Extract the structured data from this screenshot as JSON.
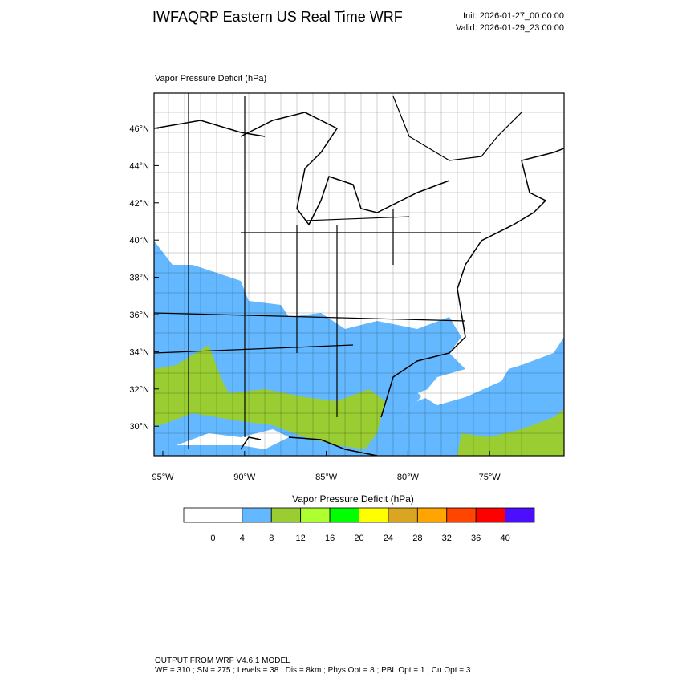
{
  "header": {
    "title": "IWFAQRP Eastern US Real Time WRF",
    "init": "Init: 2026-01-27_00:00:00",
    "valid": "Valid: 2026-01-29_23:00:00"
  },
  "map": {
    "subtitle": "Vapor Pressure Deficit   (hPa)",
    "lat_labels": [
      "46°N",
      "44°N",
      "42°N",
      "40°N",
      "38°N",
      "36°N",
      "34°N",
      "32°N",
      "30°N"
    ],
    "lon_labels": [
      "95°W",
      "90°W",
      "85°W",
      "80°W",
      "75°W"
    ]
  },
  "colorbar": {
    "title": "Vapor Pressure Deficit  (hPa)",
    "labels": [
      "0",
      "4",
      "8",
      "12",
      "16",
      "20",
      "24",
      "28",
      "32",
      "36",
      "40"
    ],
    "colors": [
      "#ffffff",
      "#ffffff",
      "#63b8ff",
      "#9acd32",
      "#adff2f",
      "#00ff00",
      "#ffff00",
      "#daa520",
      "#ffa500",
      "#ff4500",
      "#ff0000",
      "#4b0eff"
    ]
  },
  "footer": {
    "line1": "OUTPUT FROM WRF V4.6.1 MODEL",
    "line2": "WE = 310 ; SN = 275 ; Levels = 38 ; Dis = 8km ; Phys Opt = 8 ; PBL Opt = 1 ; Cu Opt = 3"
  }
}
